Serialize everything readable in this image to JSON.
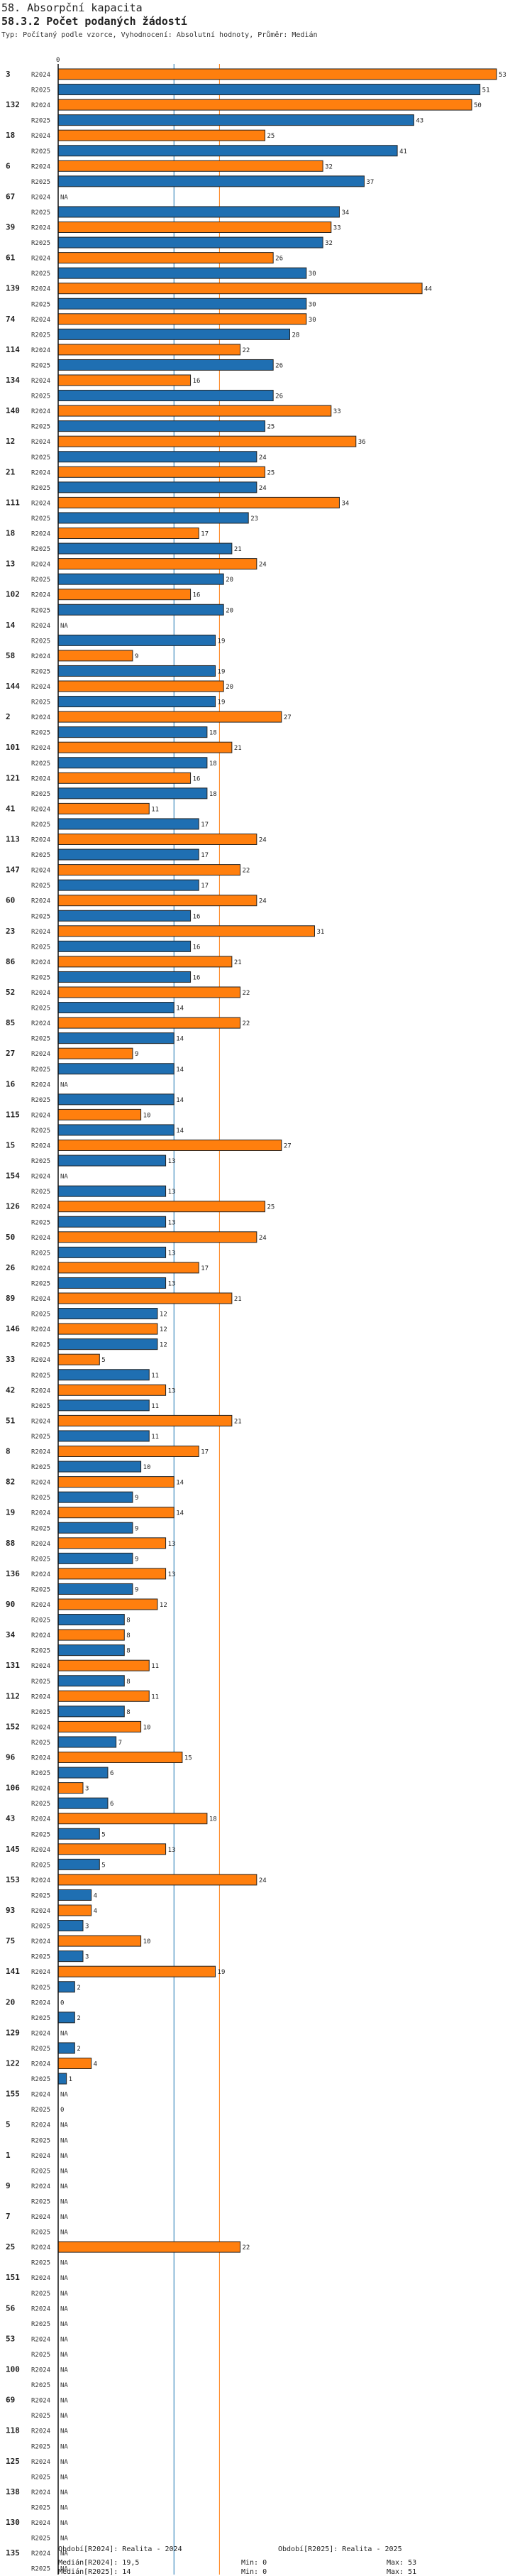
{
  "header": {
    "title": "58. Absorpční kapacita",
    "subtitle": "58.3.2 Počet podaných žádostí",
    "note": "Typ: Počítaný podle vzorce, Vyhodnocení: Absolutní hodnoty, Průměr: Medián"
  },
  "chart_data": {
    "type": "bar",
    "orientation": "horizontal",
    "axis_zero_label": "0",
    "xlim": [
      0,
      53
    ],
    "colors": {
      "R2024": "#ff7f0e",
      "R2025": "#1f6fb2",
      "median_R2024": "#ff7f0e",
      "median_R2025": "#1f77b4"
    },
    "series_labels": [
      "R2024",
      "R2025"
    ],
    "missing_label": "NA",
    "categories": [
      "3",
      "132",
      "18",
      "6",
      "67",
      "39",
      "61",
      "139",
      "74",
      "114",
      "134",
      "140",
      "12",
      "21",
      "111",
      "18",
      "13",
      "102",
      "14",
      "58",
      "144",
      "2",
      "101",
      "121",
      "41",
      "113",
      "147",
      "60",
      "23",
      "86",
      "52",
      "85",
      "27",
      "16",
      "115",
      "15",
      "154",
      "126",
      "50",
      "26",
      "89",
      "146",
      "33",
      "42",
      "51",
      "8",
      "82",
      "19",
      "88",
      "136",
      "90",
      "34",
      "131",
      "112",
      "152",
      "96",
      "106",
      "43",
      "145",
      "153",
      "93",
      "75",
      "141",
      "20",
      "129",
      "122",
      "155",
      "5",
      "1",
      "9",
      "7",
      "25",
      "151",
      "56",
      "53",
      "100",
      "69",
      "118",
      "125",
      "138",
      "130",
      "135"
    ],
    "series": [
      {
        "name": "R2024",
        "values": [
          53,
          50,
          25,
          32,
          null,
          33,
          26,
          44,
          30,
          22,
          16,
          33,
          36,
          25,
          34,
          17,
          24,
          16,
          null,
          9,
          20,
          27,
          21,
          16,
          11,
          24,
          22,
          24,
          31,
          21,
          22,
          22,
          9,
          null,
          10,
          27,
          null,
          25,
          24,
          17,
          21,
          12,
          5,
          13,
          21,
          17,
          14,
          14,
          13,
          13,
          12,
          8,
          11,
          11,
          10,
          15,
          3,
          18,
          13,
          24,
          4,
          10,
          19,
          0,
          null,
          4,
          null,
          null,
          null,
          null,
          null,
          22,
          null,
          null,
          null,
          null,
          null,
          null,
          null,
          null,
          null,
          null
        ]
      },
      {
        "name": "R2025",
        "values": [
          51,
          43,
          41,
          37,
          34,
          32,
          30,
          30,
          28,
          26,
          26,
          25,
          24,
          24,
          23,
          21,
          20,
          20,
          19,
          19,
          19,
          18,
          18,
          18,
          17,
          17,
          17,
          16,
          16,
          16,
          14,
          14,
          14,
          14,
          14,
          13,
          13,
          13,
          13,
          13,
          12,
          12,
          11,
          11,
          11,
          10,
          9,
          9,
          9,
          9,
          8,
          8,
          8,
          8,
          7,
          6,
          6,
          5,
          5,
          4,
          3,
          3,
          2,
          2,
          2,
          1,
          0,
          null,
          null,
          null,
          null,
          null,
          null,
          null,
          null,
          null,
          null,
          null,
          null,
          null,
          null,
          null
        ]
      }
    ],
    "medians": {
      "R2024": 19.5,
      "R2025": 14
    }
  },
  "footer": {
    "r2024_label": "Období[R2024]: Realita - 2024",
    "r2025_label": "Období[R2025]: Realita - 2025",
    "r2024_median": "Medián[R2024]: 19,5",
    "r2024_min": "Min: 0",
    "r2024_max": "Max: 53",
    "r2025_median": "Medián[R2025]: 14",
    "r2025_min": "Min: 0",
    "r2025_max": "Max: 51"
  }
}
